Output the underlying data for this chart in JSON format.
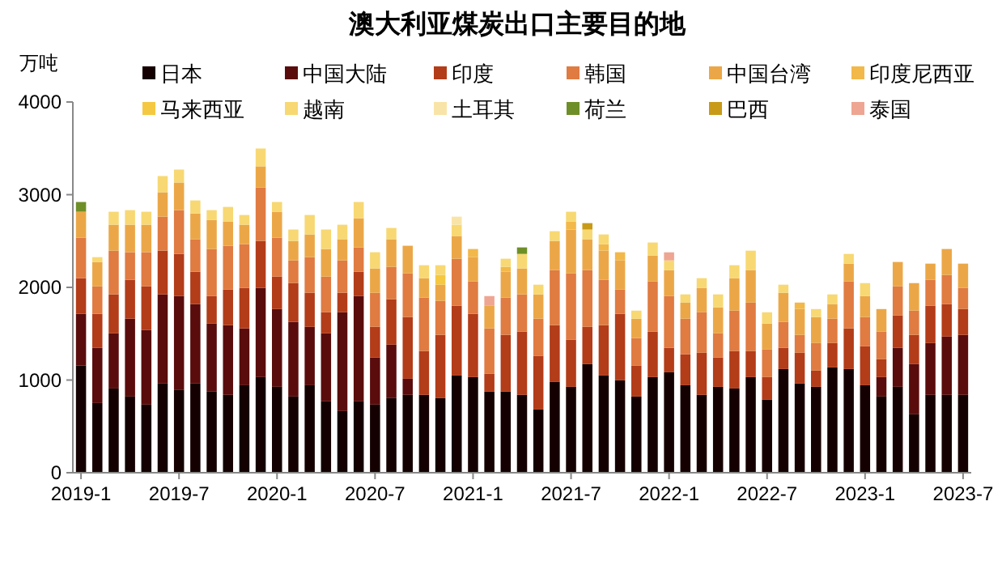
{
  "chart_data": {
    "type": "bar",
    "stacked": true,
    "title": "澳大利亚煤炭出口主要目的地",
    "ylabel": "万吨",
    "legend": "top",
    "grid": false,
    "categories": [
      "2019-1",
      null,
      null,
      null,
      null,
      null,
      "2019-7",
      null,
      null,
      null,
      null,
      null,
      "2020-1",
      null,
      null,
      null,
      null,
      null,
      "2020-7",
      null,
      null,
      null,
      null,
      null,
      "2021-1",
      null,
      null,
      null,
      null,
      null,
      "2021-7",
      null,
      null,
      null,
      null,
      null,
      "2022-1",
      null,
      null,
      null,
      null,
      null,
      "2022-7",
      null,
      null,
      null,
      null,
      null,
      "2023-1",
      null,
      null,
      null,
      null,
      null,
      "2023-7"
    ],
    "ylim": [
      0,
      4000
    ],
    "yticks": [
      0,
      1000,
      2000,
      3000,
      4000
    ],
    "series": [
      {
        "name": "日本",
        "color": "#140000",
        "values": [
          1155,
          752,
          909,
          822,
          735,
          962,
          892,
          962,
          875,
          840,
          944,
          1032,
          927,
          822,
          944,
          770,
          665,
          770,
          735,
          805,
          840,
          840,
          805,
          1049,
          1032,
          875,
          875,
          840,
          682,
          979,
          927,
          1172,
          1049,
          997,
          822,
          1032,
          1084,
          944,
          840,
          927,
          909,
          1032,
          787,
          1119,
          962,
          927,
          1137,
          1119,
          944,
          822,
          927,
          630,
          840,
          840,
          840
        ]
      },
      {
        "name": "中国大陆",
        "color": "#5a0c0c",
        "values": [
          559,
          595,
          595,
          840,
          804,
          962,
          1014,
          857,
          734,
          752,
          613,
          962,
          839,
          805,
          630,
          734,
          1066,
          1136,
          507,
          577,
          174,
          null,
          null,
          null,
          null,
          null,
          null,
          null,
          null,
          null,
          null,
          null,
          null,
          null,
          null,
          null,
          null,
          null,
          null,
          null,
          null,
          null,
          null,
          null,
          null,
          null,
          null,
          null,
          null,
          210,
          420,
          542,
          559,
          629,
          647
        ]
      },
      {
        "name": "印度",
        "color": "#b33c19",
        "values": [
          385,
          367,
          420,
          419,
          472,
          472,
          455,
          350,
          297,
          384,
          437,
          507,
          350,
          419,
          367,
          227,
          210,
          263,
          332,
          489,
          665,
          472,
          682,
          752,
          682,
          192,
          612,
          682,
          577,
          613,
          507,
          402,
          543,
          717,
          332,
          490,
          263,
          333,
          454,
          315,
          403,
          280,
          245,
          228,
          332,
          175,
          262,
          438,
          420,
          192,
          349,
          315,
          402,
          350,
          279
        ]
      },
      {
        "name": "韩国",
        "color": "#e07b42",
        "values": [
          437,
          297,
          472,
          298,
          368,
          367,
          472,
          350,
          508,
          473,
          472,
          577,
          420,
          245,
          385,
          385,
          350,
          262,
          367,
          350,
          472,
          577,
          367,
          508,
          350,
          490,
          402,
          402,
          403,
          594,
          717,
          612,
          489,
          262,
          298,
          542,
          559,
          385,
          437,
          262,
          437,
          524,
          297,
          280,
          193,
          297,
          263,
          507,
          315,
          298,
          315,
          262,
          280,
          315,
          228
        ]
      },
      {
        "name": "中国台湾",
        "color": "#eba747",
        "values": [
          280,
          263,
          280,
          297,
          297,
          263,
          298,
          279,
          314,
          262,
          210,
          228,
          280,
          210,
          245,
          298,
          228,
          315,
          263,
          298,
          298,
          210,
          175,
          245,
          262,
          244,
          280,
          280,
          262,
          315,
          473,
          333,
          315,
          315,
          210,
          280,
          280,
          174,
          263,
          280,
          350,
          350,
          280,
          314,
          280,
          280,
          157,
          192,
          227,
          244,
          263,
          297,
          175,
          280,
          262
        ]
      },
      {
        "name": "印度尼西亚",
        "color": "#f2b84a",
        "values": [
          null,
          null,
          null,
          null,
          null,
          null,
          null,
          null,
          null,
          null,
          null,
          null,
          null,
          null,
          null,
          null,
          null,
          null,
          null,
          null,
          null,
          null,
          null,
          null,
          88,
          null,
          52,
          null,
          null,
          null,
          87,
          null,
          70,
          88,
          null,
          null,
          null,
          null,
          null,
          null,
          null,
          null,
          null,
          null,
          69,
          null,
          null,
          null,
          null,
          null,
          null,
          null,
          null,
          null,
          null
        ]
      },
      {
        "name": "马来西亚",
        "color": "#f5c842",
        "values": [
          null,
          null,
          null,
          null,
          null,
          null,
          null,
          null,
          null,
          null,
          null,
          null,
          null,
          null,
          null,
          null,
          null,
          null,
          null,
          null,
          null,
          null,
          105,
          null,
          null,
          null,
          null,
          null,
          null,
          null,
          null,
          null,
          null,
          null,
          null,
          null,
          null,
          null,
          null,
          null,
          null,
          null,
          null,
          null,
          null,
          null,
          null,
          null,
          null,
          null,
          null,
          null,
          null,
          null,
          null
        ]
      },
      {
        "name": "越南",
        "color": "#f7d873",
        "values": [
          null,
          52,
          140,
          157,
          140,
          175,
          140,
          140,
          105,
          157,
          105,
          192,
          105,
          123,
          210,
          210,
          157,
          175,
          175,
          122,
          null,
          140,
          105,
          122,
          null,
          null,
          88,
          157,
          105,
          105,
          105,
          105,
          105,
          null,
          87,
          140,
          105,
          88,
          105,
          140,
          140,
          210,
          122,
          88,
          null,
          87,
          105,
          105,
          140,
          null,
          null,
          null,
          null,
          null,
          null
        ]
      },
      {
        "name": "土耳其",
        "color": "#f9e4a8",
        "values": [
          null,
          null,
          null,
          null,
          null,
          null,
          null,
          null,
          null,
          null,
          null,
          null,
          null,
          null,
          null,
          null,
          null,
          null,
          null,
          null,
          null,
          null,
          null,
          87,
          null,
          null,
          null,
          null,
          null,
          null,
          null,
          null,
          null,
          null,
          null,
          null,
          null,
          null,
          null,
          null,
          null,
          null,
          null,
          null,
          null,
          null,
          null,
          null,
          null,
          null,
          null,
          null,
          null,
          null,
          null
        ]
      },
      {
        "name": "荷兰",
        "color": "#6e8f28",
        "values": [
          105,
          null,
          null,
          null,
          null,
          null,
          null,
          null,
          null,
          null,
          null,
          null,
          null,
          null,
          null,
          null,
          null,
          null,
          null,
          null,
          null,
          null,
          null,
          null,
          null,
          null,
          null,
          70,
          null,
          null,
          null,
          null,
          null,
          null,
          null,
          null,
          null,
          null,
          null,
          null,
          null,
          null,
          null,
          null,
          null,
          null,
          null,
          null,
          null,
          null,
          null,
          null,
          null,
          null,
          null
        ]
      },
      {
        "name": "巴西",
        "color": "#c89a18",
        "values": [
          null,
          null,
          null,
          null,
          null,
          null,
          null,
          null,
          null,
          null,
          null,
          null,
          null,
          null,
          null,
          null,
          null,
          null,
          null,
          null,
          null,
          null,
          null,
          null,
          null,
          null,
          null,
          null,
          null,
          null,
          null,
          69,
          null,
          null,
          null,
          null,
          null,
          null,
          null,
          null,
          null,
          null,
          null,
          null,
          null,
          null,
          null,
          null,
          null,
          null,
          null,
          null,
          null,
          null,
          null
        ]
      },
      {
        "name": "泰国",
        "color": "#eea592",
        "values": [
          null,
          null,
          null,
          null,
          null,
          null,
          null,
          null,
          null,
          null,
          null,
          null,
          null,
          null,
          null,
          null,
          null,
          null,
          null,
          null,
          null,
          null,
          null,
          null,
          null,
          105,
          null,
          null,
          null,
          null,
          null,
          null,
          null,
          null,
          null,
          null,
          87,
          null,
          null,
          null,
          null,
          null,
          null,
          null,
          null,
          null,
          null,
          null,
          null,
          null,
          null,
          null,
          null,
          null,
          null
        ]
      }
    ]
  }
}
